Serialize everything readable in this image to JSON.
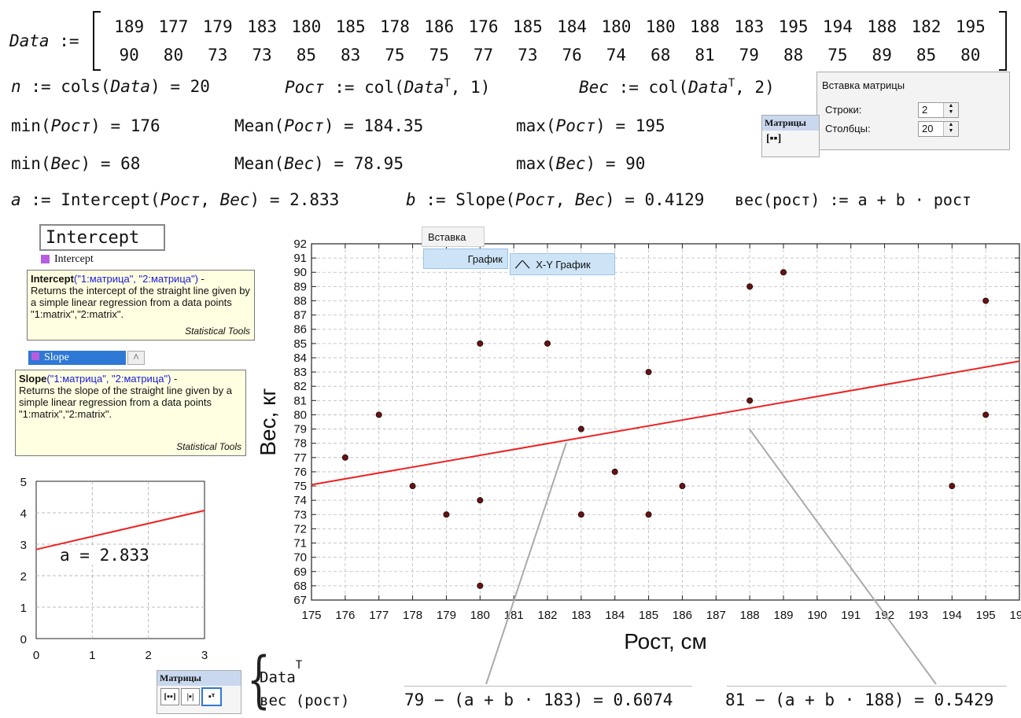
{
  "matrix": {
    "label": "Data",
    "assign": ":=",
    "row1": [
      "189",
      "177",
      "179",
      "183",
      "180",
      "185",
      "178",
      "186",
      "176",
      "185",
      "184",
      "180",
      "180",
      "188",
      "183",
      "195",
      "194",
      "188",
      "182",
      "195"
    ],
    "row2": [
      "90",
      "80",
      "73",
      "73",
      "85",
      "83",
      "75",
      "75",
      "77",
      "73",
      "76",
      "74",
      "68",
      "81",
      "79",
      "88",
      "75",
      "89",
      "85",
      "80"
    ]
  },
  "eqs": {
    "n_lhs": "n",
    "n_rhs": ":= cols",
    "n_arg": "Data",
    "n_val": "= 20",
    "rost_name": "Рост",
    "rost_def": ":= col",
    "data_T": "Data",
    "T": "T",
    "rost_idx": ", 1",
    "ves_name": "Вес",
    "ves_def": ":= col",
    "ves_idx": ", 2",
    "min_rost_fn": "min",
    "min_rost_val": "= 176",
    "mean_rost_fn": "Mean",
    "mean_rost_val": "= 184.35",
    "max_rost_fn": "max",
    "max_rost_val": "= 195",
    "min_ves_val": "= 68",
    "mean_ves_val": "= 78.95",
    "max_ves_val": "= 90",
    "a_name": "a",
    "a_def": ":= Intercept",
    "a_val": "= 2.833",
    "b_name": "b",
    "b_def": ":= Slope",
    "b_val": "= 0.4129",
    "fn_name": "вес",
    "fn_arg": "рост",
    "fn_def": ":= a + b · рост",
    "comma": ",",
    "a_inline": "a = 2.833",
    "res1": "79 − (a + b · 183) = 0.6074",
    "res2": "81 − (a + b · 188) = 0.5429",
    "brace_line1": "Data",
    "brace_line2": "вес (рост)"
  },
  "autocomplete": {
    "input_value": "Intercept",
    "item1": "Intercept",
    "item2": "Slope",
    "tip1_fn": "Intercept",
    "tip1_args": "(\"1:матрица\", \"2:матрица\")",
    "tip1_dash": " -",
    "tip1_body": "Returns the intercept of the straight line given by a simple linear regression from a data points \"1:matrix\",\"2:matrix\".",
    "tip1_src": "Statistical Tools",
    "tip2_fn": "Slope",
    "tip2_args": "(\"1:матрица\", \"2:матрица\")",
    "tip2_dash": " -",
    "tip2_body": "Returns the slope of the straight line given by a simple linear regression from a data points \"1:matrix\",\"2:matrix\".",
    "tip2_src": "Statistical Tools"
  },
  "insert_matrix": {
    "title": "Вставка матрицы",
    "rows_label": "Строки:",
    "rows_value": "2",
    "cols_label": "Столбцы:",
    "cols_value": "20"
  },
  "toolbar_matrices": {
    "title": "Матрицы",
    "title2": "Матрицы"
  },
  "menu": {
    "insert": "Вставка",
    "graph": "График",
    "xy_graph": "X-Y График"
  },
  "chart_data": [
    {
      "type": "scatter",
      "xlabel": "Рост, см",
      "ylabel": "Вес, кг",
      "xlim": [
        175,
        196
      ],
      "ylim": [
        67,
        92
      ],
      "grid": true,
      "points_x": [
        189,
        177,
        179,
        183,
        180,
        185,
        178,
        186,
        176,
        185,
        184,
        180,
        180,
        188,
        183,
        195,
        194,
        188,
        182,
        195
      ],
      "points_y": [
        90,
        80,
        73,
        73,
        85,
        83,
        75,
        75,
        77,
        73,
        76,
        74,
        68,
        81,
        79,
        88,
        75,
        89,
        85,
        80
      ],
      "fit_line": {
        "intercept": 2.833,
        "slope": 0.4129
      },
      "colors": {
        "line": "#ee2222",
        "point": "#6b1010"
      }
    },
    {
      "type": "line",
      "xlim": [
        0,
        3
      ],
      "ylim": [
        0,
        5
      ],
      "grid": true,
      "fit_line": {
        "intercept": 2.833,
        "slope": 0.4129
      },
      "colors": {
        "line": "#ee2222"
      }
    }
  ]
}
